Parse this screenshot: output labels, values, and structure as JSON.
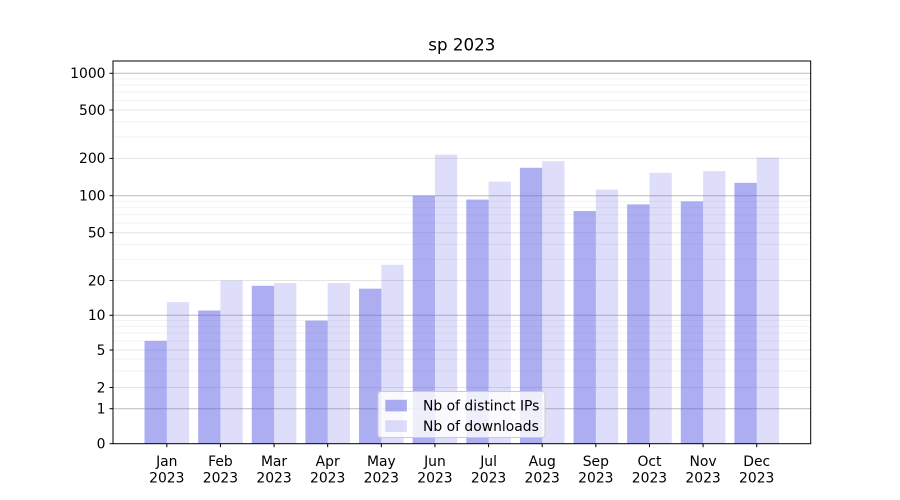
{
  "page": {
    "background": "#ffffff"
  },
  "chart_data": {
    "type": "bar",
    "title": "sp 2023",
    "months": [
      "Jan",
      "Feb",
      "Mar",
      "Apr",
      "May",
      "Jun",
      "Jul",
      "Aug",
      "Sep",
      "Oct",
      "Nov",
      "Dec"
    ],
    "year_label": "2023",
    "categories": [
      "Jan 2023",
      "Feb 2023",
      "Mar 2023",
      "Apr 2023",
      "May 2023",
      "Jun 2023",
      "Jul 2023",
      "Aug 2023",
      "Sep 2023",
      "Oct 2023",
      "Nov 2023",
      "Dec 2023"
    ],
    "series": [
      {
        "name": "Nb of distinct IPs",
        "values": [
          6,
          11,
          18,
          9,
          17,
          100,
          93,
          168,
          75,
          85,
          90,
          127
        ]
      },
      {
        "name": "Nb of downloads",
        "values": [
          13,
          20,
          19,
          19,
          27,
          215,
          130,
          190,
          112,
          153,
          158,
          203
        ]
      }
    ],
    "base_color": "#5b5be4",
    "series_colors": [
      "rgba(91,91,228,0.5)",
      "rgba(91,91,228,0.2)"
    ],
    "yscale": "symlog",
    "yticks": [
      0,
      1,
      2,
      5,
      10,
      20,
      50,
      100,
      200,
      500,
      1000
    ],
    "ytick_labels": [
      "0",
      "1",
      "2",
      "5",
      "10",
      "20",
      "50",
      "100",
      "200",
      "500",
      "1000"
    ],
    "ylim": [
      0,
      1300
    ],
    "grid": true,
    "legend_position": "lower center"
  }
}
